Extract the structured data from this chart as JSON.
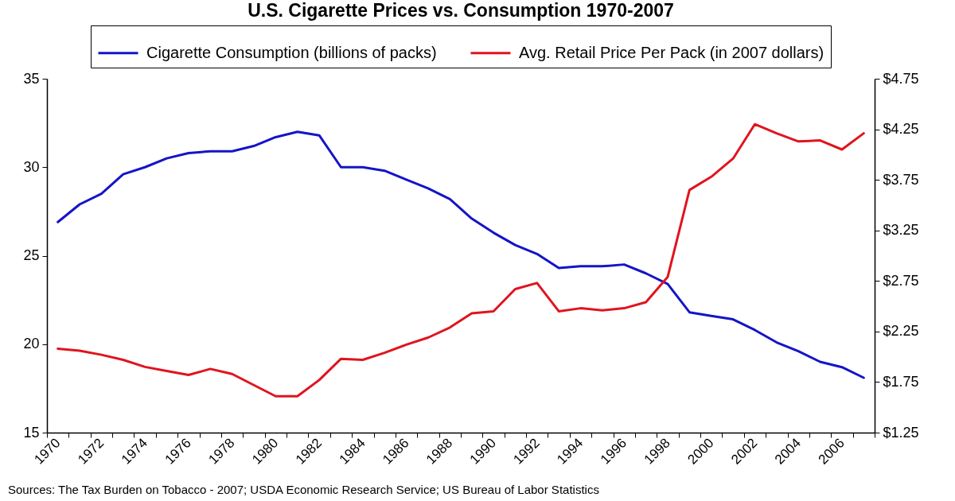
{
  "chart_data": {
    "type": "line",
    "title": "U.S. Cigarette Prices vs. Consumption 1970-2007",
    "categories": [
      "1970",
      null,
      "1972",
      null,
      "1974",
      null,
      "1976",
      null,
      "1978",
      null,
      "1980",
      null,
      "1982",
      null,
      "1984",
      null,
      "1986",
      null,
      "1988",
      null,
      "1990",
      null,
      "1992",
      null,
      "1994",
      null,
      "1996",
      null,
      "1998",
      null,
      "2000",
      null,
      "2002",
      null,
      "2004",
      null,
      "2006",
      null
    ],
    "series": [
      {
        "name": "Cigarette Consumption (billions of packs)",
        "color": "#1414c8",
        "values": [
          26.9,
          27.9,
          28.5,
          29.6,
          30.0,
          30.5,
          30.8,
          30.9,
          30.9,
          31.2,
          31.7,
          32.0,
          31.8,
          30.0,
          30.0,
          29.8,
          29.3,
          28.8,
          28.2,
          27.1,
          26.3,
          25.6,
          25.1,
          24.3,
          24.4,
          24.4,
          24.5,
          24.0,
          23.4,
          21.8,
          21.6,
          21.4,
          20.8,
          20.1,
          19.6,
          19.0,
          18.7,
          18.1
        ]
      },
      {
        "name": "Avg. Retail Price Per Pack (in 2007 dollars)",
        "color": "#e0141e",
        "axis": "y2",
        "values": [
          2.08,
          2.06,
          2.02,
          1.97,
          1.9,
          1.86,
          1.82,
          1.88,
          1.83,
          1.72,
          1.61,
          1.61,
          1.77,
          1.98,
          1.97,
          2.04,
          2.12,
          2.19,
          2.29,
          2.43,
          2.45,
          2.67,
          2.73,
          2.45,
          2.48,
          2.46,
          2.48,
          2.54,
          2.79,
          3.65,
          3.78,
          3.96,
          4.3,
          4.21,
          4.13,
          4.14,
          4.05,
          4.21
        ]
      }
    ],
    "ylim": [
      15,
      35
    ],
    "yticks": [
      15,
      20,
      25,
      30,
      35
    ],
    "y2lim": [
      1.25,
      4.75
    ],
    "y2ticks": [
      {
        "value": 1.25,
        "label": "$1.25"
      },
      {
        "value": 1.75,
        "label": "$1.75"
      },
      {
        "value": 2.25,
        "label": "$2.25"
      },
      {
        "value": 2.75,
        "label": "$2.75"
      },
      {
        "value": 3.25,
        "label": "$3.25"
      },
      {
        "value": 3.75,
        "label": "$3.75"
      },
      {
        "value": 4.25,
        "label": "$4.25"
      },
      {
        "value": 4.75,
        "label": "$4.75"
      }
    ],
    "legend": "top",
    "grid": false,
    "annotations": [
      "Sources: The Tax Burden on Tobacco - 2007; USDA Economic Research Service; US Bureau of Labor Statistics"
    ]
  }
}
